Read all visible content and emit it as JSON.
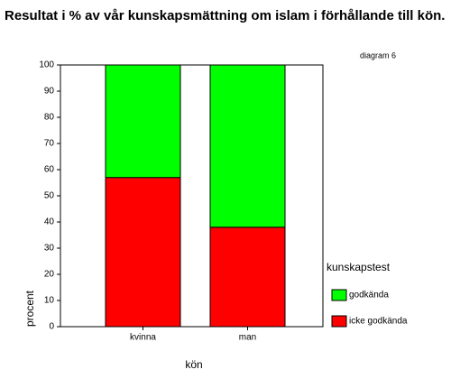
{
  "chart_data": {
    "type": "stacked-bar",
    "title": "Resultat i % av vår kunskapsmättning om islam i förhållande till kön.",
    "annotation": "diagram 6",
    "x_label": "kön",
    "y_label": "procent",
    "legend_title": "kunskapstest",
    "categories": [
      "kvinna",
      "man"
    ],
    "series": [
      {
        "name": "icke godkända",
        "color": "#ff0000",
        "values": [
          57,
          38
        ]
      },
      {
        "name": "godkända",
        "color": "#00ff00",
        "values": [
          43,
          62
        ]
      }
    ],
    "ylim": [
      0,
      100
    ],
    "yticks": [
      0,
      10,
      20,
      30,
      40,
      50,
      60,
      70,
      80,
      90,
      100
    ]
  }
}
